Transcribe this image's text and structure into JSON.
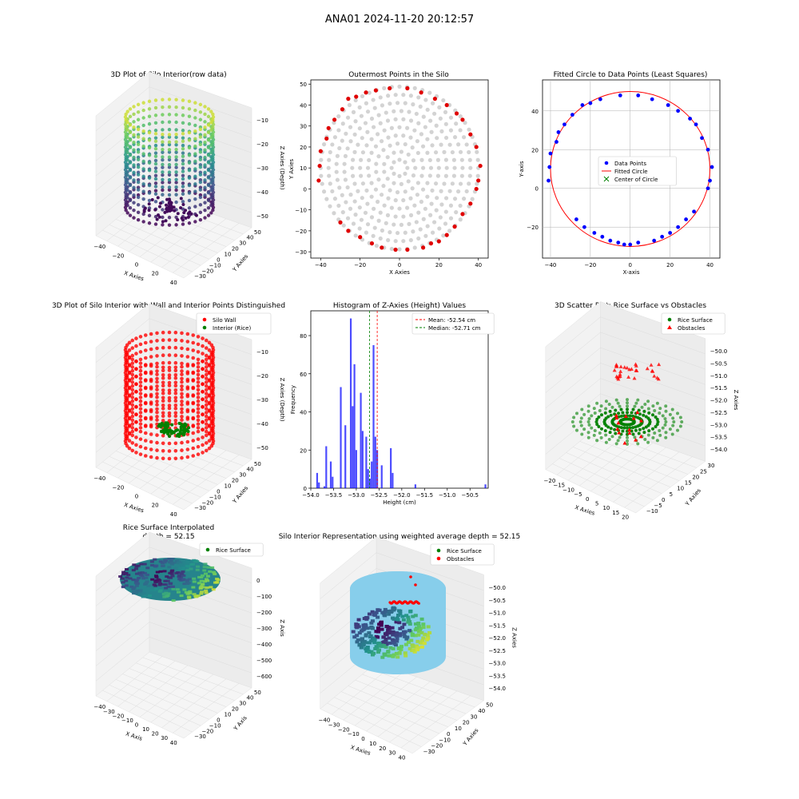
{
  "suptitle": "ANA01 2024-11-20 20:12:57",
  "colors": {
    "viridis": [
      "#440154",
      "#3b528b",
      "#21918c",
      "#5ec962",
      "#fde725"
    ],
    "wall_red": "#ff0000",
    "rice_green": "#008000",
    "gray_points": "#d3d3d3",
    "outer_red": "#e00000",
    "blue_points": "#0000ff",
    "hist_blue": "#0000ff",
    "mean_line": "#ff0000",
    "median_line": "#008000",
    "sky": "#87ceeb"
  },
  "panels": {
    "p1": {
      "title": "3D Plot of Silo Interior(row data)",
      "xlabel": "X Axies",
      "ylabel": "Y Axies",
      "zlabel": "Z Axies (Depth)",
      "xticks": [
        "−40",
        "−20",
        "0",
        "20",
        "40"
      ],
      "yticks": [
        "−30",
        "−20",
        "−10",
        "0",
        "10",
        "20",
        "30",
        "40",
        "50"
      ],
      "zticks": [
        "−50",
        "−40",
        "−30",
        "−20",
        "−10"
      ]
    },
    "p2": {
      "title": "Outermost Points in the Silo",
      "xlabel": "X Axies",
      "ylabel": "Y Axies",
      "xticks": [
        "−40",
        "−20",
        "0",
        "20",
        "40"
      ],
      "yticks": [
        "−30",
        "−20",
        "−10",
        "0",
        "10",
        "20",
        "30",
        "40",
        "50"
      ]
    },
    "p3": {
      "title": "Fitted Circle to Data Points (Least Squares)",
      "xlabel": "X-axis",
      "ylabel": "Y-axis",
      "xticks": [
        "−40",
        "−20",
        "0",
        "20",
        "40"
      ],
      "yticks": [
        "−20",
        "0",
        "20",
        "40"
      ],
      "legend": [
        "Data Points",
        "Fitted Circle",
        "Center of Circle"
      ]
    },
    "p4": {
      "title": "3D Plot of Silo Interior with Wall and Interior Points Distinguished",
      "xlabel": "X Axies",
      "ylabel": "Y Axies",
      "zlabel": "Z Axies (Depth)",
      "xticks": [
        "−40",
        "−20",
        "0",
        "20",
        "40"
      ],
      "yticks": [
        "−30",
        "−20",
        "−10",
        "0",
        "10",
        "20",
        "30",
        "40",
        "50"
      ],
      "zticks": [
        "−50",
        "−40",
        "−30",
        "−20",
        "−10"
      ],
      "legend": [
        "Silo Wall",
        "Interior (Rice)"
      ]
    },
    "p5": {
      "title": "Histogram of Z-Axies (Height) Values",
      "xlabel": "Height (cm)",
      "ylabel": "Frequency",
      "xticks": [
        "−54.0",
        "−53.5",
        "−53.0",
        "−52.5",
        "−52.0",
        "−51.5",
        "−51.0",
        "−50.5"
      ],
      "yticks": [
        "0",
        "20",
        "40",
        "60",
        "80"
      ],
      "legend": [
        "Mean: -52.54 cm",
        "Median: -52.71 cm"
      ]
    },
    "p6": {
      "title": "3D Scatter Plot: Rice Surface vs Obstacles",
      "xlabel": "X Axies",
      "ylabel": "Y Axies",
      "zlabel": "Z Axies",
      "xticks": [
        "−20",
        "−15",
        "−10",
        "−5",
        "0",
        "5",
        "10",
        "15",
        "20"
      ],
      "yticks": [
        "−10",
        "−5",
        "0",
        "5",
        "10",
        "15",
        "20",
        "25",
        "30"
      ],
      "zticks": [
        "−54.0",
        "−53.5",
        "−53.0",
        "−52.5",
        "−52.0",
        "−51.5",
        "−51.0",
        "−50.5",
        "−50.0"
      ],
      "legend": [
        "Rice Surface",
        "Obstacles"
      ]
    },
    "p7": {
      "title": "Rice Surface Interpolated",
      "subtitle": "depth = 52.15",
      "xlabel": "X Axis",
      "ylabel": "Y Axis",
      "zlabel": "Z Axis",
      "xticks": [
        "−40",
        "−30",
        "−20",
        "−10",
        "0",
        "10",
        "20",
        "30",
        "40"
      ],
      "yticks": [
        "−30",
        "−20",
        "−10",
        "0",
        "10",
        "20",
        "30",
        "40",
        "50"
      ],
      "zticks": [
        "−600",
        "−500",
        "−400",
        "−300",
        "−200",
        "−100",
        "0"
      ],
      "legend": [
        "Rice Surface"
      ]
    },
    "p8": {
      "title": "Silo Interior Representation using weighted average depth = 52.15",
      "xlabel": "X Axies",
      "ylabel": "Y Axies",
      "zlabel": "Z Axies",
      "xticks": [
        "−40",
        "−30",
        "−20",
        "−10",
        "0",
        "10",
        "20",
        "30",
        "40"
      ],
      "yticks": [
        "−30",
        "−20",
        "−10",
        "0",
        "10",
        "20",
        "30",
        "40",
        "50"
      ],
      "zticks": [
        "−54.0",
        "−53.5",
        "−53.0",
        "−52.5",
        "−52.0",
        "−51.5",
        "−51.0",
        "−50.5",
        "−50.0"
      ],
      "legend": [
        "Rice Surface",
        "Obstacles"
      ]
    }
  },
  "chart_data": [
    {
      "type": "scatter",
      "title": "3D Plot of Silo Interior(row data)",
      "xlim": [
        -45,
        45
      ],
      "ylim": [
        -35,
        55
      ],
      "zlim": [
        -58,
        -5
      ],
      "silo": {
        "center": [
          0,
          10
        ],
        "radius": 40,
        "z_levels": [
          -57,
          -53,
          -49,
          -45,
          -41,
          -37,
          -33,
          -29,
          -25,
          -21,
          -17,
          -13,
          -9
        ]
      }
    },
    {
      "type": "scatter",
      "title": "Outermost Points in the Silo",
      "xlim": [
        -45,
        45
      ],
      "ylim": [
        -33,
        52
      ],
      "rings": [
        4,
        8,
        12,
        16,
        20,
        24,
        28,
        32,
        36,
        40
      ],
      "center": [
        0,
        10
      ],
      "outer_points": [
        [
          -41,
          4
        ],
        [
          -40.5,
          11
        ],
        [
          -40,
          18
        ],
        [
          -37,
          24
        ],
        [
          -36,
          29
        ],
        [
          -33,
          33
        ],
        [
          -29,
          38
        ],
        [
          -26,
          43
        ],
        [
          -22,
          44
        ],
        [
          -17,
          46
        ],
        [
          -12,
          47
        ],
        [
          -5,
          48
        ],
        [
          4,
          48
        ],
        [
          11,
          46
        ],
        [
          18,
          43
        ],
        [
          24,
          40
        ],
        [
          29,
          36
        ],
        [
          32,
          33
        ],
        [
          36,
          26
        ],
        [
          39,
          20
        ],
        [
          41,
          11
        ],
        [
          40,
          4
        ],
        [
          39,
          0
        ],
        [
          36,
          -7
        ],
        [
          32,
          -12
        ],
        [
          28,
          -18
        ],
        [
          24,
          -22
        ],
        [
          20,
          -25
        ],
        [
          16,
          -26
        ],
        [
          12,
          -28
        ],
        [
          4,
          -29
        ],
        [
          -2,
          -29
        ],
        [
          -9,
          -28
        ],
        [
          -14,
          -26
        ],
        [
          -20,
          -23
        ],
        [
          -26,
          -20
        ],
        [
          -30,
          -16
        ]
      ]
    },
    {
      "type": "scatter",
      "title": "Fitted Circle to Data Points (Least Squares)",
      "xlim": [
        -44,
        45
      ],
      "ylim": [
        -36,
        56
      ],
      "fitted_circle": {
        "center": [
          0,
          10
        ],
        "radius": 40
      },
      "points": [
        [
          -41,
          4
        ],
        [
          -40.5,
          11
        ],
        [
          -40,
          18
        ],
        [
          -37,
          24
        ],
        [
          -36,
          29
        ],
        [
          -33,
          33
        ],
        [
          -29,
          38
        ],
        [
          -24,
          43
        ],
        [
          -20,
          44
        ],
        [
          -15,
          46
        ],
        [
          -5,
          48
        ],
        [
          4,
          48
        ],
        [
          11,
          46
        ],
        [
          19,
          43
        ],
        [
          24,
          40
        ],
        [
          30,
          36
        ],
        [
          33,
          33
        ],
        [
          36,
          26
        ],
        [
          39,
          20
        ],
        [
          41,
          11
        ],
        [
          40,
          4
        ],
        [
          39,
          0
        ],
        [
          32,
          -12
        ],
        [
          28,
          -16
        ],
        [
          24,
          -20
        ],
        [
          20,
          -23
        ],
        [
          16,
          -25
        ],
        [
          12,
          -27
        ],
        [
          4,
          -28
        ],
        [
          0,
          -29
        ],
        [
          -3,
          -29
        ],
        [
          -6,
          -28
        ],
        [
          -10,
          -27
        ],
        [
          -14,
          -25
        ],
        [
          -18,
          -23
        ],
        [
          -23,
          -20
        ],
        [
          -27,
          -16
        ]
      ]
    },
    {
      "type": "scatter",
      "title": "3D Plot of Silo Interior with Wall and Interior Points Distinguished",
      "xlim": [
        -45,
        45
      ],
      "ylim": [
        -35,
        55
      ],
      "zlim": [
        -58,
        -5
      ],
      "series": [
        {
          "name": "Silo Wall",
          "radius": 40,
          "z_range": [
            -57,
            -9
          ]
        },
        {
          "name": "Interior (Rice)",
          "radius_max": 20,
          "z_range": [
            -56,
            -52
          ]
        }
      ]
    },
    {
      "type": "bar",
      "title": "Histogram of Z-Axies (Height) Values",
      "xlabel": "Height (cm)",
      "ylabel": "Frequency",
      "xlim": [
        -54,
        -50.1
      ],
      "ylim": [
        0,
        93
      ],
      "bin_width": 0.0385,
      "bins": [
        [
          -53.88,
          8
        ],
        [
          -53.84,
          3
        ],
        [
          -53.72,
          1
        ],
        [
          -53.68,
          22
        ],
        [
          -53.58,
          14
        ],
        [
          -53.54,
          6
        ],
        [
          -53.36,
          53
        ],
        [
          -53.26,
          33
        ],
        [
          -53.14,
          89
        ],
        [
          -53.1,
          43
        ],
        [
          -53.06,
          65
        ],
        [
          -53.02,
          20
        ],
        [
          -52.92,
          50
        ],
        [
          -52.88,
          30
        ],
        [
          -52.8,
          27
        ],
        [
          -52.76,
          10
        ],
        [
          -52.72,
          5
        ],
        [
          -52.68,
          14
        ],
        [
          -52.64,
          75
        ],
        [
          -52.6,
          27
        ],
        [
          -52.56,
          20
        ],
        [
          -52.46,
          12
        ],
        [
          -52.26,
          21
        ],
        [
          -52.22,
          8
        ],
        [
          -51.72,
          2
        ]
      ],
      "bins_right_text": [],
      "mean": -52.54,
      "median": -52.71
    },
    {
      "type": "scatter",
      "title": "3D Scatter Plot: Rice Surface vs Obstacles",
      "xlim": [
        -20,
        20
      ],
      "ylim": [
        -12,
        30
      ],
      "zlim": [
        -54.2,
        -50
      ],
      "series": [
        {
          "name": "Rice Surface",
          "spiral_arms": 7,
          "z_range": [
            -54,
            -53
          ]
        },
        {
          "name": "Obstacles",
          "z_range": [
            -51.5,
            -50.2
          ]
        }
      ]
    },
    {
      "type": "heatmap",
      "title": "Rice Surface Interpolated",
      "subtitle": "depth = 52.15",
      "xlim": [
        -40,
        40
      ],
      "ylim": [
        -30,
        50
      ],
      "zlim": [
        -600,
        0
      ],
      "surface_z": -52.15
    },
    {
      "type": "heatmap",
      "title": "Silo Interior Representation using weighted average depth = 52.15",
      "xlim": [
        -45,
        45
      ],
      "ylim": [
        -35,
        55
      ],
      "zlim": [
        -54,
        -50
      ],
      "cylinder_radius": 40,
      "series": [
        {
          "name": "Rice Surface"
        },
        {
          "name": "Obstacles"
        }
      ]
    }
  ]
}
